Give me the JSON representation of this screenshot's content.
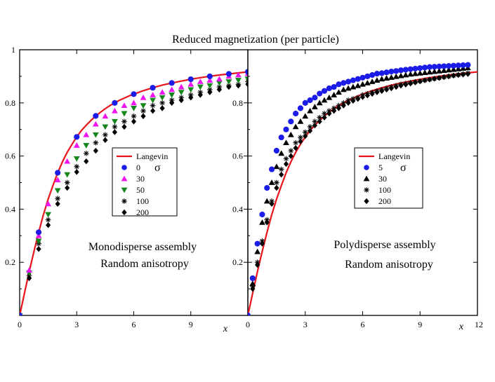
{
  "figure_title": "Reduced magnetization (per particle)",
  "colors": {
    "langevin": "#e8141c",
    "blue": "#1c1ce8",
    "magenta": "#ee16ee",
    "green": "#14861c",
    "black": "#000000"
  },
  "chart_data": [
    {
      "id": "mono",
      "type": "scatter",
      "title": "Reduced magnetization (per particle)",
      "xlabel": "x",
      "ylabel": "",
      "xlim": [
        0,
        12
      ],
      "ylim": [
        0,
        1
      ],
      "xticks": [
        0,
        3,
        6,
        9
      ],
      "yticks": [
        0.2,
        0.4,
        0.6,
        0.8,
        1
      ],
      "ytick_labels": [
        "0.2",
        "0.4",
        "0.6",
        "0.8",
        "1"
      ],
      "legend_symbol": "σ",
      "legend_position": "center-right",
      "annotations": [
        "Monodisperse assembly",
        "Random anisotropy"
      ],
      "line": {
        "name": "Langevin",
        "x": [
          0,
          0.25,
          0.5,
          0.75,
          1,
          1.25,
          1.5,
          1.75,
          2,
          2.25,
          2.5,
          2.75,
          3,
          3.25,
          3.5,
          3.75,
          4,
          4.25,
          4.5,
          4.75,
          5,
          5.25,
          5.5,
          5.75,
          6,
          6.5,
          7,
          7.5,
          8,
          8.5,
          9,
          9.5,
          10,
          10.5,
          11,
          11.5,
          12
        ],
        "y": [
          0,
          0.083,
          0.164,
          0.24,
          0.313,
          0.38,
          0.438,
          0.489,
          0.537,
          0.578,
          0.614,
          0.644,
          0.672,
          0.696,
          0.716,
          0.734,
          0.751,
          0.765,
          0.778,
          0.79,
          0.8,
          0.81,
          0.818,
          0.826,
          0.833,
          0.846,
          0.857,
          0.867,
          0.875,
          0.882,
          0.889,
          0.895,
          0.9,
          0.905,
          0.909,
          0.913,
          0.917
        ]
      },
      "series": [
        {
          "name": "0",
          "marker": "circle",
          "color": "#1c1ce8",
          "x": [
            0,
            1,
            2,
            3,
            4,
            5,
            6,
            7,
            8,
            9,
            10,
            11,
            12
          ],
          "y": [
            0,
            0.313,
            0.537,
            0.672,
            0.751,
            0.8,
            0.833,
            0.857,
            0.875,
            0.889,
            0.9,
            0.909,
            0.917
          ]
        },
        {
          "name": "30",
          "marker": "triangle-up",
          "color": "#ee16ee",
          "x": [
            0,
            0.5,
            1,
            1.5,
            2,
            2.5,
            3,
            3.5,
            4,
            4.5,
            5,
            5.5,
            6,
            6.5,
            7,
            7.5,
            8,
            8.5,
            9,
            9.5,
            10,
            10.5,
            11,
            11.5,
            12
          ],
          "y": [
            0,
            0.17,
            0.3,
            0.42,
            0.51,
            0.58,
            0.64,
            0.68,
            0.72,
            0.75,
            0.77,
            0.79,
            0.8,
            0.82,
            0.83,
            0.84,
            0.85,
            0.86,
            0.87,
            0.88,
            0.885,
            0.89,
            0.9,
            0.905,
            0.91
          ]
        },
        {
          "name": "50",
          "marker": "triangle-down",
          "color": "#14861c",
          "x": [
            0,
            0.5,
            1,
            1.5,
            2,
            2.5,
            3,
            3.5,
            4,
            4.5,
            5,
            5.5,
            6,
            6.5,
            7,
            7.5,
            8,
            8.5,
            9,
            9.5,
            10,
            10.5,
            11,
            11.5,
            12
          ],
          "y": [
            0,
            0.16,
            0.28,
            0.38,
            0.47,
            0.53,
            0.59,
            0.64,
            0.68,
            0.71,
            0.73,
            0.76,
            0.78,
            0.79,
            0.81,
            0.82,
            0.83,
            0.84,
            0.85,
            0.86,
            0.865,
            0.875,
            0.88,
            0.885,
            0.89
          ]
        },
        {
          "name": "100",
          "marker": "star",
          "color": "#000000",
          "x": [
            0,
            0.5,
            1,
            1.5,
            2,
            2.5,
            3,
            3.5,
            4,
            4.5,
            5,
            5.5,
            6,
            6.5,
            7,
            7.5,
            8,
            8.5,
            9,
            9.5,
            10,
            10.5,
            11,
            11.5,
            12
          ],
          "y": [
            0,
            0.15,
            0.27,
            0.36,
            0.44,
            0.5,
            0.56,
            0.61,
            0.65,
            0.68,
            0.71,
            0.73,
            0.75,
            0.77,
            0.79,
            0.8,
            0.81,
            0.82,
            0.83,
            0.84,
            0.85,
            0.86,
            0.865,
            0.87,
            0.88
          ]
        },
        {
          "name": "200",
          "marker": "diamond",
          "color": "#000000",
          "x": [
            0,
            0.5,
            1,
            1.5,
            2,
            2.5,
            3,
            3.5,
            4,
            4.5,
            5,
            5.5,
            6,
            6.5,
            7,
            7.5,
            8,
            8.5,
            9,
            9.5,
            10,
            10.5,
            11,
            11.5,
            12
          ],
          "y": [
            0,
            0.14,
            0.25,
            0.34,
            0.42,
            0.48,
            0.54,
            0.58,
            0.62,
            0.66,
            0.69,
            0.71,
            0.73,
            0.75,
            0.77,
            0.78,
            0.8,
            0.81,
            0.82,
            0.83,
            0.84,
            0.85,
            0.86,
            0.865,
            0.87
          ]
        }
      ]
    },
    {
      "id": "poly",
      "type": "scatter",
      "title": "",
      "xlabel": "x",
      "ylabel": "",
      "xlim": [
        0,
        12
      ],
      "ylim": [
        0,
        1
      ],
      "xticks": [
        0,
        3,
        6,
        9,
        12
      ],
      "yticks": [
        0.2,
        0.4,
        0.6,
        0.8
      ],
      "ytick_labels": [
        "0.2",
        "0.4",
        "0.6",
        "0.8"
      ],
      "legend_symbol": "σ",
      "legend_position": "center-right",
      "annotations": [
        "Polydisperse assembly",
        "Random anisotropy"
      ],
      "line": {
        "name": "Langevin",
        "x": [
          0,
          0.25,
          0.5,
          0.75,
          1,
          1.25,
          1.5,
          1.75,
          2,
          2.25,
          2.5,
          2.75,
          3,
          3.25,
          3.5,
          3.75,
          4,
          4.25,
          4.5,
          4.75,
          5,
          5.25,
          5.5,
          5.75,
          6,
          6.5,
          7,
          7.5,
          8,
          8.5,
          9,
          9.5,
          10,
          10.5,
          11,
          11.5,
          12
        ],
        "y": [
          0,
          0.083,
          0.164,
          0.24,
          0.313,
          0.38,
          0.438,
          0.489,
          0.537,
          0.578,
          0.614,
          0.644,
          0.672,
          0.696,
          0.716,
          0.734,
          0.751,
          0.765,
          0.778,
          0.79,
          0.8,
          0.81,
          0.818,
          0.826,
          0.833,
          0.846,
          0.857,
          0.867,
          0.875,
          0.882,
          0.889,
          0.895,
          0.9,
          0.905,
          0.909,
          0.913,
          0.917
        ]
      },
      "series": [
        {
          "name": "5",
          "marker": "circle",
          "color": "#1c1ce8",
          "x": [
            0,
            0.25,
            0.5,
            0.75,
            1,
            1.25,
            1.5,
            1.75,
            2,
            2.25,
            2.5,
            2.75,
            3,
            3.25,
            3.5,
            3.75,
            4,
            4.25,
            4.5,
            4.75,
            5,
            5.25,
            5.5,
            5.75,
            6,
            6.25,
            6.5,
            6.75,
            7,
            7.25,
            7.5,
            7.75,
            8,
            8.25,
            8.5,
            8.75,
            9,
            9.25,
            9.5,
            9.75,
            10,
            10.25,
            10.5,
            10.75,
            11,
            11.25,
            11.5
          ],
          "y": [
            0,
            0.14,
            0.27,
            0.38,
            0.48,
            0.55,
            0.62,
            0.67,
            0.7,
            0.73,
            0.76,
            0.78,
            0.8,
            0.81,
            0.82,
            0.835,
            0.845,
            0.855,
            0.86,
            0.87,
            0.875,
            0.88,
            0.885,
            0.89,
            0.895,
            0.9,
            0.905,
            0.91,
            0.912,
            0.915,
            0.918,
            0.92,
            0.923,
            0.925,
            0.927,
            0.929,
            0.931,
            0.933,
            0.935,
            0.936,
            0.937,
            0.938,
            0.939,
            0.94,
            0.941,
            0.942,
            0.943
          ]
        },
        {
          "name": "30",
          "marker": "triangle-up",
          "color": "#000000",
          "x": [
            0,
            0.25,
            0.5,
            0.75,
            1,
            1.25,
            1.5,
            1.75,
            2,
            2.25,
            2.5,
            2.75,
            3,
            3.25,
            3.5,
            3.75,
            4,
            4.25,
            4.5,
            4.75,
            5,
            5.25,
            5.5,
            5.75,
            6,
            6.25,
            6.5,
            6.75,
            7,
            7.25,
            7.5,
            7.75,
            8,
            8.25,
            8.5,
            8.75,
            9,
            9.25,
            9.5,
            9.75,
            10,
            10.25,
            10.5,
            10.75,
            11,
            11.25,
            11.5
          ],
          "y": [
            0,
            0.12,
            0.24,
            0.35,
            0.43,
            0.5,
            0.56,
            0.61,
            0.65,
            0.68,
            0.71,
            0.73,
            0.75,
            0.77,
            0.785,
            0.8,
            0.81,
            0.82,
            0.83,
            0.84,
            0.85,
            0.855,
            0.86,
            0.865,
            0.87,
            0.875,
            0.88,
            0.885,
            0.89,
            0.893,
            0.896,
            0.899,
            0.902,
            0.905,
            0.908,
            0.91,
            0.912,
            0.914,
            0.916,
            0.918,
            0.92,
            0.922,
            0.924,
            0.926,
            0.928,
            0.93,
            0.932
          ]
        },
        {
          "name": "100",
          "marker": "star",
          "color": "#000000",
          "x": [
            0,
            0.25,
            0.5,
            0.75,
            1,
            1.25,
            1.5,
            1.75,
            2,
            2.25,
            2.5,
            2.75,
            3,
            3.25,
            3.5,
            3.75,
            4,
            4.25,
            4.5,
            4.75,
            5,
            5.25,
            5.5,
            5.75,
            6,
            6.25,
            6.5,
            6.75,
            7,
            7.25,
            7.5,
            7.75,
            8,
            8.25,
            8.5,
            8.75,
            9,
            9.25,
            9.5,
            9.75,
            10,
            10.25,
            10.5,
            10.75,
            11,
            11.25,
            11.5
          ],
          "y": [
            0,
            0.11,
            0.2,
            0.28,
            0.36,
            0.43,
            0.5,
            0.55,
            0.59,
            0.62,
            0.65,
            0.67,
            0.69,
            0.71,
            0.73,
            0.745,
            0.76,
            0.77,
            0.78,
            0.79,
            0.8,
            0.81,
            0.815,
            0.82,
            0.83,
            0.835,
            0.84,
            0.845,
            0.85,
            0.855,
            0.86,
            0.865,
            0.87,
            0.873,
            0.876,
            0.879,
            0.882,
            0.885,
            0.888,
            0.891,
            0.894,
            0.897,
            0.9,
            0.903,
            0.906,
            0.909,
            0.912
          ]
        },
        {
          "name": "200",
          "marker": "diamond",
          "color": "#000000",
          "x": [
            0,
            0.25,
            0.5,
            0.75,
            1,
            1.25,
            1.5,
            1.75,
            2,
            2.25,
            2.5,
            2.75,
            3,
            3.25,
            3.5,
            3.75,
            4,
            4.25,
            4.5,
            4.75,
            5,
            5.25,
            5.5,
            5.75,
            6,
            6.25,
            6.5,
            6.75,
            7,
            7.25,
            7.5,
            7.75,
            8,
            8.25,
            8.5,
            8.75,
            9,
            9.25,
            9.5,
            9.75,
            10,
            10.25,
            10.5,
            10.75,
            11,
            11.25,
            11.5
          ],
          "y": [
            0,
            0.1,
            0.19,
            0.27,
            0.35,
            0.42,
            0.48,
            0.53,
            0.57,
            0.6,
            0.63,
            0.655,
            0.675,
            0.695,
            0.715,
            0.73,
            0.745,
            0.76,
            0.77,
            0.78,
            0.79,
            0.8,
            0.808,
            0.815,
            0.822,
            0.828,
            0.834,
            0.84,
            0.845,
            0.85,
            0.855,
            0.86,
            0.865,
            0.869,
            0.873,
            0.877,
            0.881,
            0.885,
            0.888,
            0.891,
            0.894,
            0.897,
            0.9,
            0.903,
            0.905,
            0.907,
            0.909
          ]
        }
      ]
    }
  ]
}
